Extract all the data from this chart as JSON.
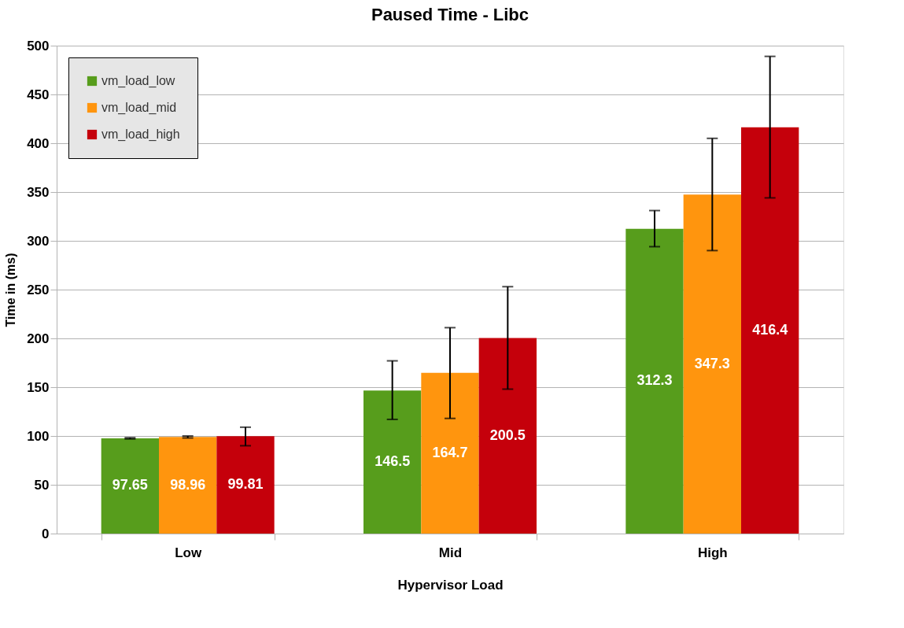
{
  "chart_data": {
    "type": "bar",
    "title": "Paused Time - Libc",
    "xlabel": "Hypervisor Load",
    "ylabel": "Time in (ms)",
    "categories": [
      "Low",
      "Mid",
      "High"
    ],
    "series": [
      {
        "name": "vm_load_low",
        "color": "#579d1c",
        "values": [
          97.65,
          146.5,
          312.3
        ],
        "errors": [
          [
            97,
            98.2
          ],
          [
            117,
            177
          ],
          [
            294,
            331
          ]
        ]
      },
      {
        "name": "vm_load_mid",
        "color": "#ff950e",
        "values": [
          98.96,
          164.7,
          347.3
        ],
        "errors": [
          [
            98,
            100
          ],
          [
            118,
            211
          ],
          [
            290,
            405
          ]
        ]
      },
      {
        "name": "vm_load_high",
        "color": "#c5000b",
        "values": [
          99.81,
          200.5,
          416.4
        ],
        "errors": [
          [
            90,
            109
          ],
          [
            148,
            253
          ],
          [
            344,
            489
          ]
        ]
      }
    ],
    "ylim": [
      0,
      500
    ],
    "yticks": [
      0,
      50,
      100,
      150,
      200,
      250,
      300,
      350,
      400,
      450,
      500
    ],
    "grid": "y",
    "legend": "top left",
    "data_labels": true
  }
}
